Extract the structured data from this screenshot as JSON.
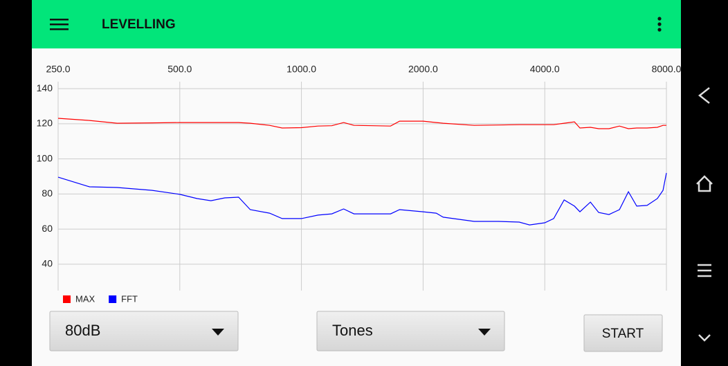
{
  "app_bar": {
    "title": "LEVELLING"
  },
  "chart_data": {
    "type": "line",
    "x": [
      250,
      299,
      350,
      427,
      500,
      552,
      597,
      646,
      699,
      747,
      834,
      896,
      1000,
      1099,
      1189,
      1272,
      1349,
      1506,
      1662,
      1749,
      2000,
      2156,
      2242,
      2676,
      3072,
      3458,
      3668,
      4000,
      4209,
      4467,
      4737,
      4888,
      5188,
      5438,
      5767,
      6121,
      6443,
      6755,
      7163,
      7598,
      7847,
      8000
    ],
    "xlim": [
      250,
      8000
    ],
    "xscale": "log",
    "xticks": [
      {
        "value": 250,
        "label": "250.0"
      },
      {
        "value": 500,
        "label": "500.0"
      },
      {
        "value": 1000,
        "label": "1000.0"
      },
      {
        "value": 2000,
        "label": "2000.0"
      },
      {
        "value": 4000,
        "label": "4000.0"
      },
      {
        "value": 8000,
        "label": "8000.0"
      }
    ],
    "ylim": [
      25,
      144
    ],
    "yticks": [
      40,
      60,
      80,
      100,
      120,
      140
    ],
    "grid": true,
    "legend": "bottom-left",
    "series": [
      {
        "name": "MAX",
        "color": "#ff0000",
        "values": [
          123.1,
          121.9,
          120.3,
          120.5,
          120.7,
          120.7,
          120.7,
          120.7,
          120.7,
          120.3,
          119.1,
          117.6,
          117.8,
          118.7,
          118.9,
          120.7,
          119.1,
          118.9,
          118.7,
          121.5,
          121.5,
          120.7,
          120.3,
          119.1,
          119.3,
          119.5,
          119.5,
          119.5,
          119.5,
          120.3,
          121.1,
          117.6,
          118.0,
          117.2,
          117.2,
          118.7,
          117.2,
          117.6,
          117.6,
          118.0,
          119.1,
          119.1
        ]
      },
      {
        "name": "FFT",
        "color": "#0000ff",
        "values": [
          89.6,
          84.1,
          83.7,
          82.1,
          79.8,
          77.4,
          76.2,
          77.8,
          78.2,
          71.1,
          69.1,
          66.0,
          66.0,
          68.0,
          68.7,
          71.5,
          68.7,
          68.7,
          68.7,
          71.1,
          69.9,
          69.1,
          66.8,
          64.4,
          64.4,
          64.0,
          62.4,
          63.6,
          66.0,
          76.6,
          73.1,
          69.9,
          75.4,
          69.5,
          68.3,
          71.1,
          81.3,
          73.1,
          73.5,
          77.4,
          82.1,
          92.0
        ]
      }
    ]
  },
  "controls": {
    "level": "80dB",
    "signal": "Tones",
    "start": "START"
  }
}
